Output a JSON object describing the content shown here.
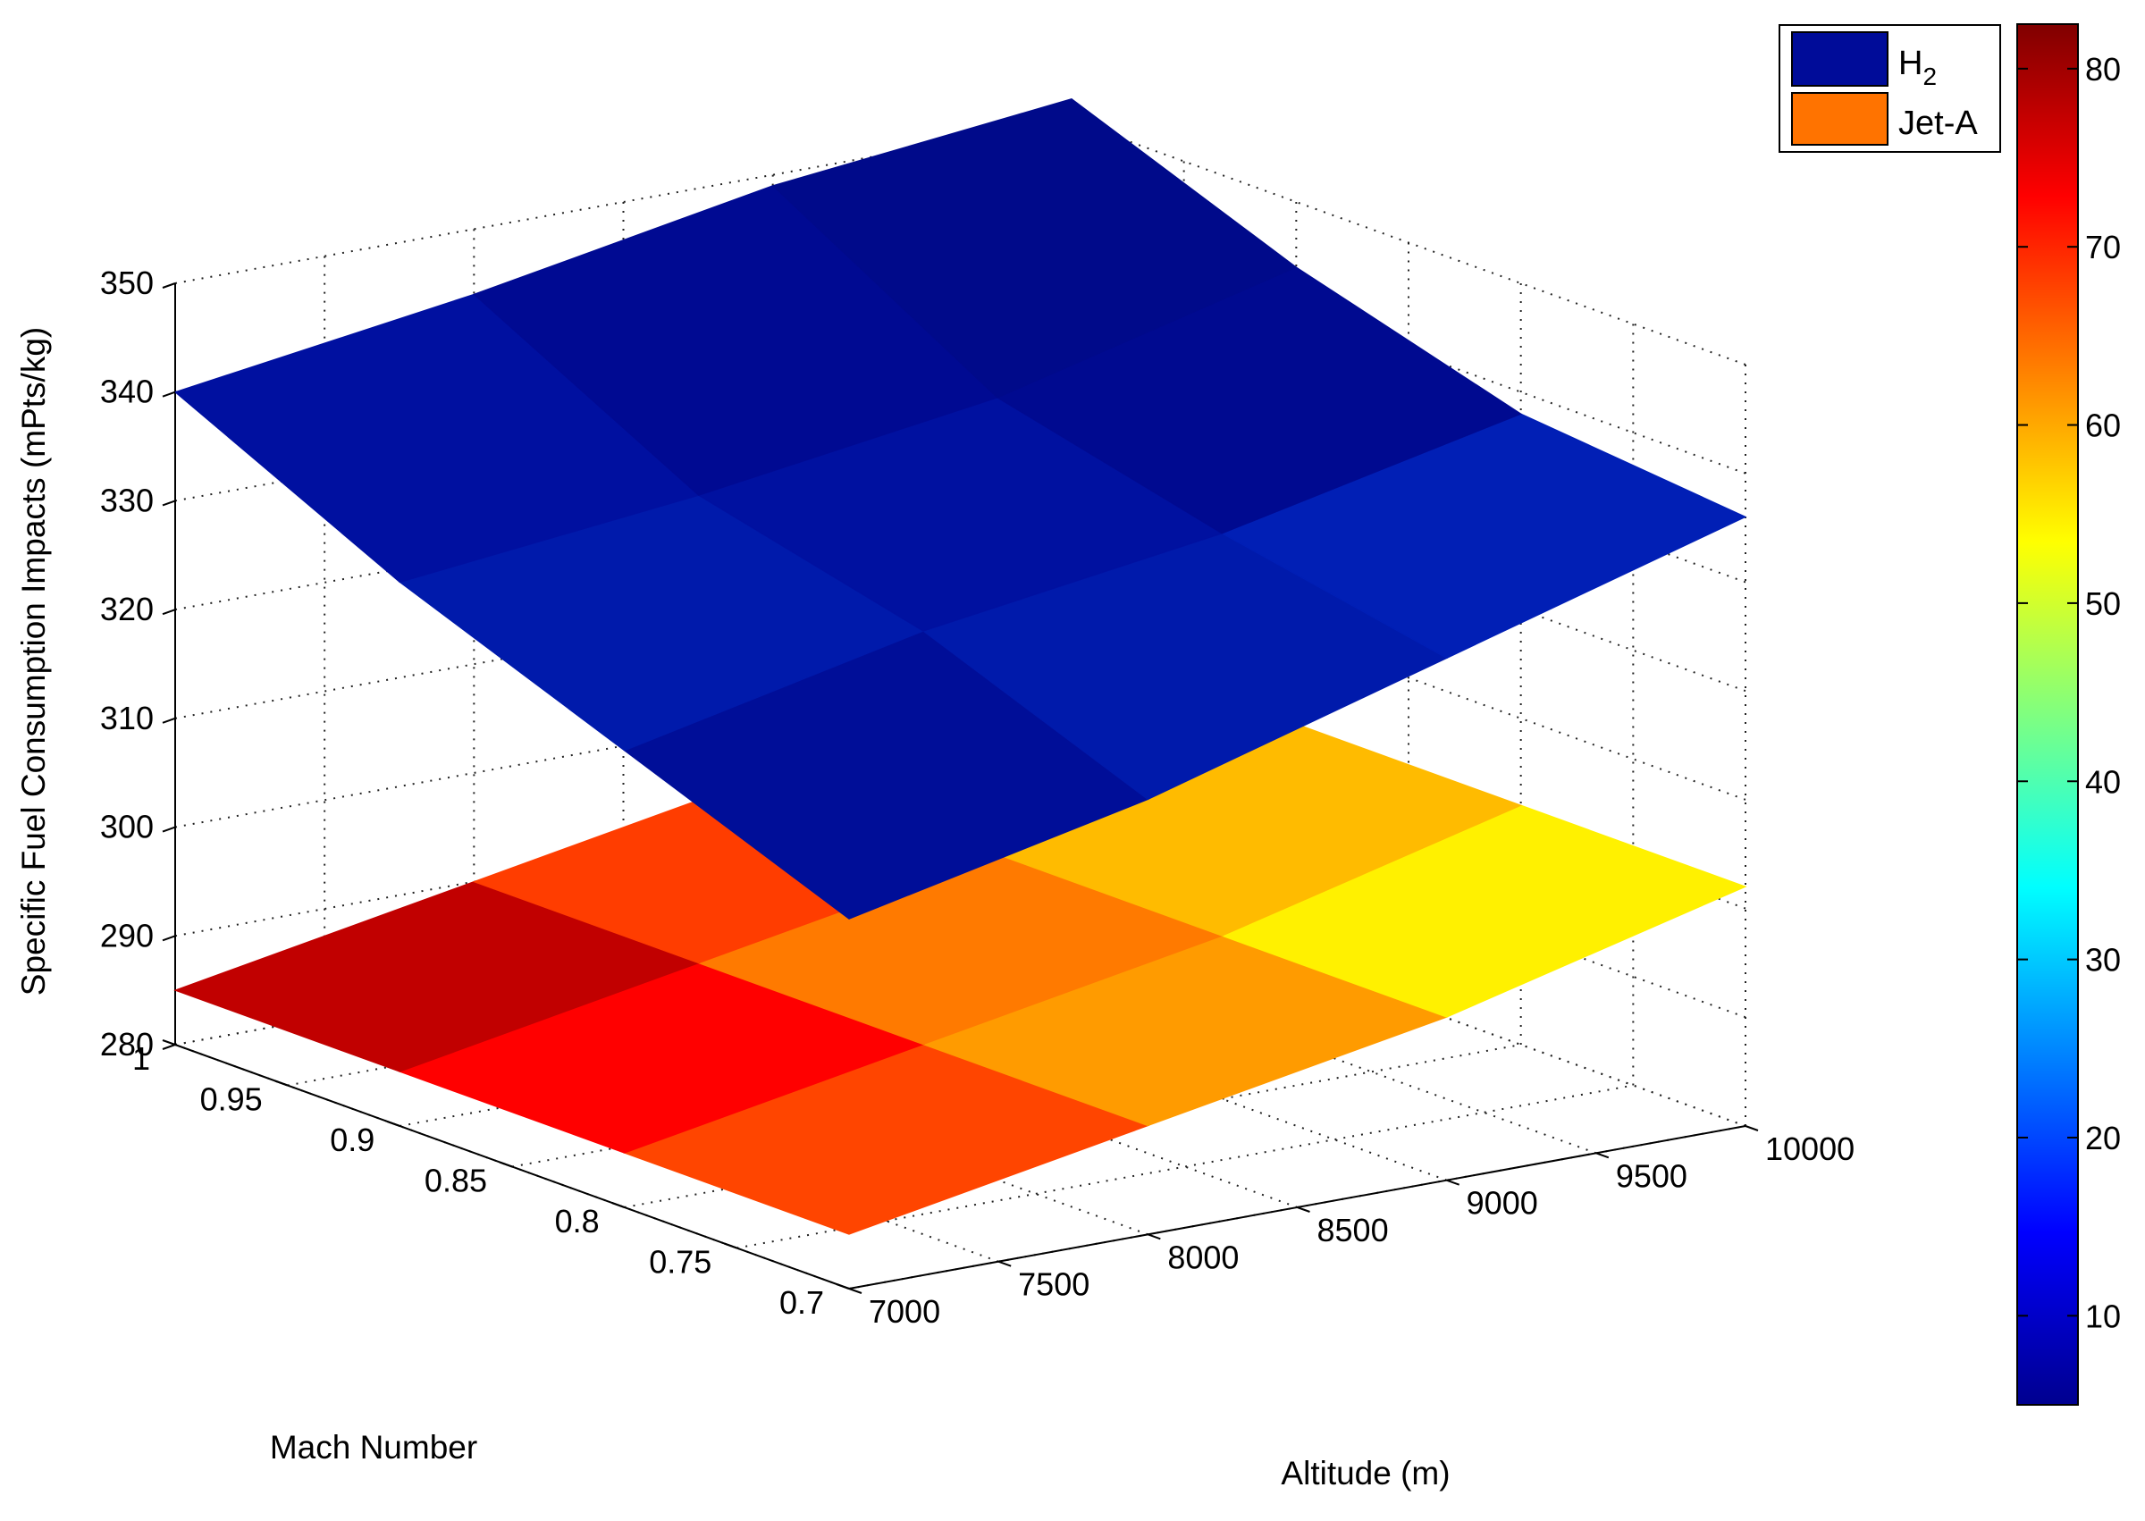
{
  "chart_data": {
    "type": "surface3d",
    "x_label": "Altitude (m)",
    "y_label": "Mach Number",
    "z_label": "Specific Fuel Consumption Impacts (mPts/kg)",
    "x_ticks": [
      "7000",
      "7500",
      "8000",
      "8500",
      "9000",
      "9500",
      "10000"
    ],
    "y_ticks": [
      "0.7",
      "0.75",
      "0.8",
      "0.85",
      "0.9",
      "0.95",
      "1"
    ],
    "z_ticks": [
      "280",
      "290",
      "300",
      "310",
      "320",
      "330",
      "340",
      "350"
    ],
    "xlim": [
      7000,
      10000
    ],
    "ylim": [
      0.7,
      1.0
    ],
    "zlim": [
      280,
      350
    ],
    "grid": true,
    "legend_position": "top-right",
    "x_nodes": [
      7000,
      8000,
      9000,
      10000
    ],
    "y_nodes": [
      0.7,
      0.8,
      0.9,
      1.0
    ],
    "series": [
      {
        "name": "H",
        "name_subscript": "2",
        "color": "#000c99",
        "z": [
          [
            314,
            320,
            328,
            336
          ],
          [
            322,
            328,
            332,
            338
          ],
          [
            330,
            333,
            337,
            344
          ],
          [
            340,
            344,
            349,
            352
          ]
        ],
        "face_colors": [
          [
            "#000e98",
            "#001aab",
            "#011fb5"
          ],
          [
            "#001aab",
            "#0011a0",
            "#000a90"
          ],
          [
            "#0010a0",
            "#000a92",
            "#000a8a"
          ]
        ]
      },
      {
        "name": "Jet-A",
        "color": "#ff7300",
        "z": [
          [
            285,
            290,
            295,
            302
          ],
          [
            285,
            290,
            295,
            302
          ],
          [
            285,
            290,
            295,
            302
          ],
          [
            285,
            290,
            295,
            302
          ]
        ],
        "face_colors": [
          [
            "#ff4500",
            "#ff9b00",
            "#fff100"
          ],
          [
            "#ff0000",
            "#ff7a00",
            "#ffbb00"
          ],
          [
            "#c10000",
            "#ff3d00",
            "#ff9000"
          ]
        ]
      }
    ],
    "colorbar": {
      "min": 5,
      "max": 82.5,
      "ticks": [
        "10",
        "20",
        "30",
        "40",
        "50",
        "60",
        "70",
        "80"
      ],
      "colormap": "jet"
    }
  }
}
